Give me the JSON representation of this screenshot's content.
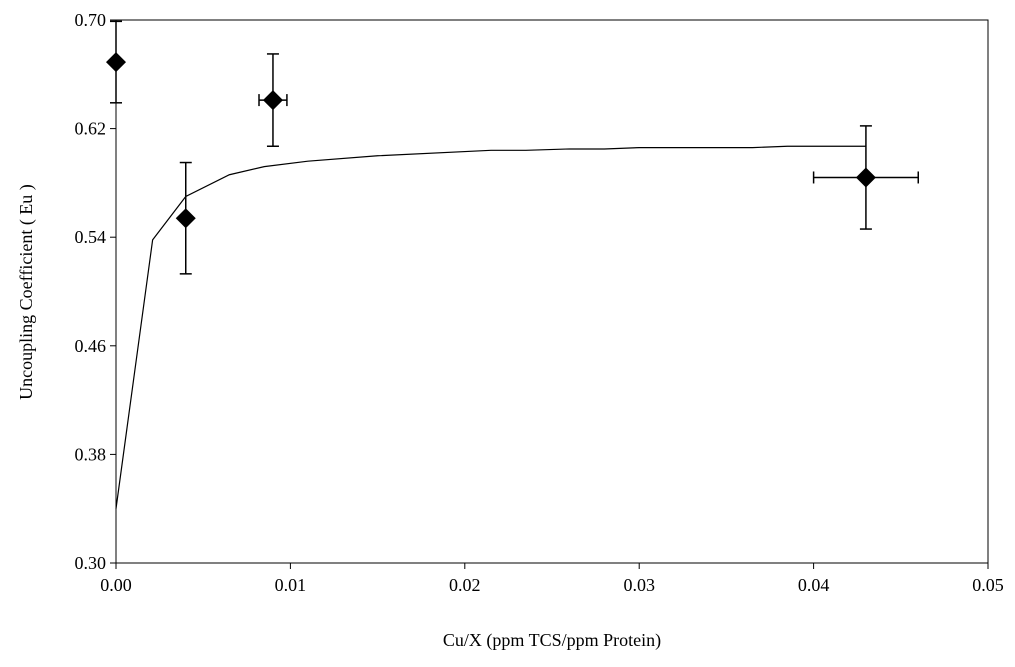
{
  "chart_data": {
    "type": "scatter",
    "xlabel": "Cu/X (ppm TCS/ppm Protein)",
    "ylabel": "Uncoupling Coefficient ( Eu )",
    "xlim": [
      0,
      0.05
    ],
    "ylim": [
      0.3,
      0.7
    ],
    "xticks": [
      {
        "value": 0,
        "label": "0.00"
      },
      0.01,
      0.02,
      0.03,
      0.04,
      0.05
    ],
    "yticks": [
      {
        "value": 0.3,
        "label": "0.30"
      },
      0.38,
      0.46,
      0.54,
      0.62,
      {
        "value": 0.7,
        "label": "0.70"
      }
    ],
    "grid": false,
    "color": "#000000",
    "points": {
      "x": [
        0,
        0.004,
        0.009,
        0.043
      ],
      "y": [
        0.669,
        0.554,
        0.641,
        0.584
      ],
      "yerr": [
        0.03,
        0.041,
        0.034,
        0.038
      ],
      "xerr": [
        null,
        null,
        0.0008,
        0.003
      ]
    },
    "curve": {
      "x": [
        0,
        0.0021,
        0.004,
        0.0065,
        0.0085,
        0.011,
        0.015,
        0.0215,
        0.0235,
        0.026,
        0.028,
        0.03,
        0.0365,
        0.0385,
        0.043
      ],
      "y": [
        0.34,
        0.538,
        0.57,
        0.586,
        0.592,
        0.596,
        0.6,
        0.604,
        0.604,
        0.605,
        0.605,
        0.606,
        0.606,
        0.607,
        0.607
      ]
    }
  }
}
